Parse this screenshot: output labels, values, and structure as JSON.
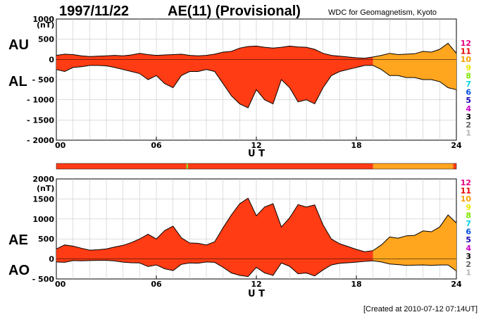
{
  "header": {
    "date": "1997/11/22",
    "title": "AE(11) (Provisional)",
    "source": "WDC for Geomagnetism, Kyoto"
  },
  "footer": {
    "created": "[Created at 2010-07-12 07:14UT]"
  },
  "legend": {
    "items": [
      {
        "label": "12",
        "color": "#e6007e"
      },
      {
        "label": "11",
        "color": "#e60000"
      },
      {
        "label": "10",
        "color": "#f5a000"
      },
      {
        "label": "9",
        "color": "#e6e600"
      },
      {
        "label": "8",
        "color": "#80e600"
      },
      {
        "label": "7",
        "color": "#00d2e6"
      },
      {
        "label": "6",
        "color": "#0050e6"
      },
      {
        "label": "5",
        "color": "#1400b4"
      },
      {
        "label": "4",
        "color": "#c800c8"
      },
      {
        "label": "3",
        "color": "#000000"
      },
      {
        "label": "2",
        "color": "#646464"
      },
      {
        "label": "1",
        "color": "#b4b4b4"
      }
    ]
  },
  "colors": {
    "red": "#ff3c14",
    "orange": "#ffa51e",
    "green": "#a0d21e",
    "line": "#000000",
    "grid": "#c8c8c8"
  },
  "chart_data": [
    {
      "type": "area",
      "name": "AU-AL",
      "side_labels": [
        "AU",
        "AL"
      ],
      "unit": "(nT)",
      "xlabel": "U T",
      "xlim": [
        0,
        24
      ],
      "ylim": [
        -2000,
        1000
      ],
      "xticks": [
        "00",
        "06",
        "12",
        "18",
        "24"
      ],
      "yticks": [
        "1000",
        "500",
        "0",
        "- 500",
        "- 1000",
        "- 1500",
        "- 2000"
      ],
      "x": [
        0,
        0.5,
        1,
        1.5,
        2,
        2.5,
        3,
        3.5,
        4,
        4.5,
        5,
        5.5,
        6,
        6.5,
        7,
        7.5,
        8,
        8.5,
        9,
        9.5,
        10,
        10.5,
        11,
        11.5,
        12,
        12.5,
        13,
        13.5,
        14,
        14.5,
        15,
        15.5,
        16,
        16.5,
        17,
        17.5,
        18,
        18.5,
        19,
        19.5,
        20,
        20.5,
        21,
        21.5,
        22,
        22.5,
        23,
        23.5,
        24
      ],
      "series": [
        {
          "name": "AU",
          "values": [
            100,
            130,
            120,
            90,
            70,
            80,
            90,
            100,
            90,
            110,
            150,
            120,
            100,
            110,
            120,
            130,
            100,
            90,
            100,
            130,
            180,
            200,
            280,
            320,
            330,
            300,
            280,
            300,
            330,
            310,
            300,
            250,
            150,
            100,
            80,
            60,
            40,
            30,
            60,
            100,
            150,
            120,
            130,
            140,
            200,
            180,
            250,
            400,
            150
          ]
        },
        {
          "name": "AL",
          "values": [
            -250,
            -300,
            -200,
            -180,
            -150,
            -150,
            -160,
            -200,
            -250,
            -300,
            -350,
            -500,
            -400,
            -600,
            -700,
            -400,
            -300,
            -300,
            -250,
            -300,
            -600,
            -900,
            -1100,
            -1200,
            -750,
            -1000,
            -1100,
            -500,
            -700,
            -1050,
            -1000,
            -1100,
            -700,
            -400,
            -300,
            -250,
            -200,
            -150,
            -150,
            -250,
            -400,
            -400,
            -450,
            -450,
            -500,
            -500,
            -550,
            -700,
            -750
          ]
        }
      ],
      "color_segments": [
        {
          "from": 0,
          "to": 19,
          "color": "red"
        },
        {
          "from": 19,
          "to": 24,
          "color": "orange"
        }
      ]
    },
    {
      "type": "area",
      "name": "AE-AO",
      "side_labels": [
        "AE",
        "AO"
      ],
      "unit": "(nT)",
      "xlabel": "U T",
      "xlim": [
        0,
        24
      ],
      "ylim": [
        -500,
        2000
      ],
      "xticks": [
        "00",
        "06",
        "12",
        "18",
        "24"
      ],
      "yticks": [
        "2000",
        "1500",
        "1000",
        "500",
        "0",
        "- 500"
      ],
      "x": [
        0,
        0.5,
        1,
        1.5,
        2,
        2.5,
        3,
        3.5,
        4,
        4.5,
        5,
        5.5,
        6,
        6.5,
        7,
        7.5,
        8,
        8.5,
        9,
        9.5,
        10,
        10.5,
        11,
        11.5,
        12,
        12.5,
        13,
        13.5,
        14,
        14.5,
        15,
        15.5,
        16,
        16.5,
        17,
        17.5,
        18,
        18.5,
        19,
        19.5,
        20,
        20.5,
        21,
        21.5,
        22,
        22.5,
        23,
        23.5,
        24
      ],
      "series": [
        {
          "name": "AE",
          "values": [
            250,
            350,
            320,
            270,
            220,
            230,
            250,
            300,
            340,
            410,
            500,
            620,
            500,
            710,
            820,
            530,
            400,
            390,
            350,
            430,
            780,
            1100,
            1380,
            1520,
            1080,
            1300,
            1380,
            800,
            1030,
            1360,
            1300,
            1350,
            850,
            500,
            380,
            310,
            240,
            180,
            210,
            350,
            550,
            520,
            580,
            590,
            700,
            680,
            800,
            1100,
            900
          ]
        },
        {
          "name": "AO",
          "values": [
            -75,
            -85,
            -40,
            -45,
            -40,
            -35,
            -35,
            -50,
            -80,
            -95,
            -100,
            -190,
            -150,
            -245,
            -290,
            -135,
            -100,
            -105,
            -75,
            -85,
            -210,
            -350,
            -410,
            -440,
            -210,
            -350,
            -410,
            -100,
            -185,
            -370,
            -350,
            -425,
            -275,
            -150,
            -110,
            -95,
            -80,
            -60,
            -45,
            -75,
            -125,
            -140,
            -160,
            -155,
            -150,
            -160,
            -150,
            -150,
            -300
          ]
        }
      ],
      "color_segments": [
        {
          "from": 0,
          "to": 19,
          "color": "red"
        },
        {
          "from": 19,
          "to": 24,
          "color": "orange"
        }
      ]
    },
    {
      "type": "bar",
      "name": "station-count-bar",
      "color_segments": [
        {
          "from": 0,
          "to": 7.8,
          "color": "red"
        },
        {
          "from": 7.8,
          "to": 7.9,
          "color": "green"
        },
        {
          "from": 7.9,
          "to": 19,
          "color": "red"
        },
        {
          "from": 19,
          "to": 23.8,
          "color": "orange"
        },
        {
          "from": 23.8,
          "to": 24,
          "color": "red"
        }
      ]
    }
  ]
}
